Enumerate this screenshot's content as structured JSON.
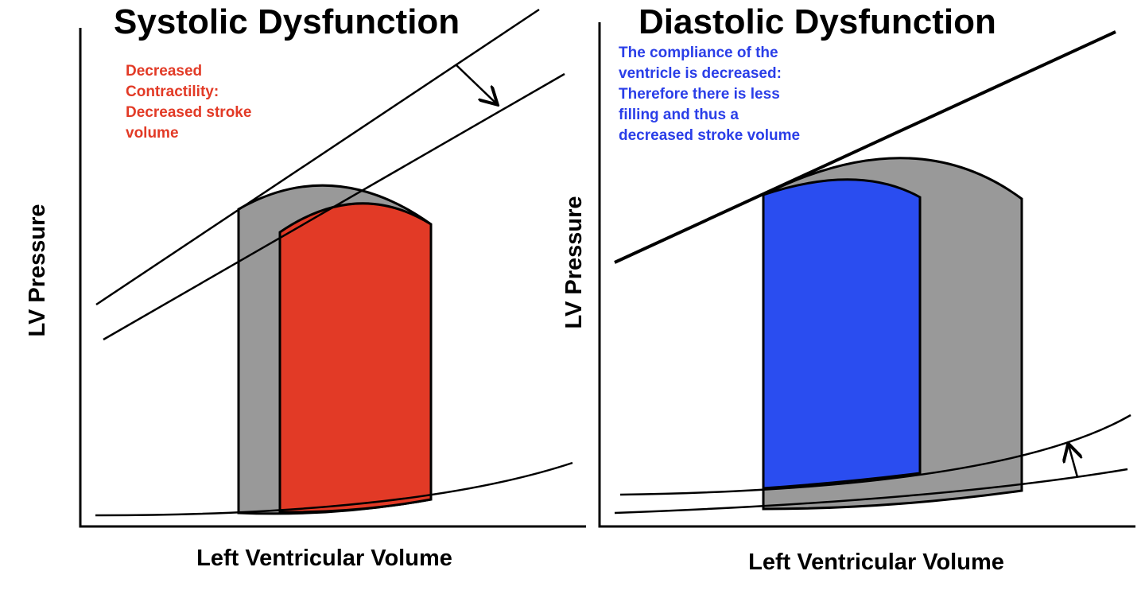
{
  "colors": {
    "systolic_loop": "#e23a26",
    "diastolic_loop": "#2a4df0",
    "original_loop": "#999999",
    "systolic_note": "#e23a26",
    "diastolic_note": "#2a3ee8",
    "lines": "#000000"
  },
  "panels": {
    "systolic": {
      "title": "Systolic Dysfunction",
      "note_lines": [
        "Decreased",
        "Contractility:",
        "Decreased stroke",
        "volume"
      ],
      "y_label": "LV Pressure",
      "x_label": "Left Ventricular Volume",
      "shift_arrow_icon": "arrow-down-right-icon"
    },
    "diastolic": {
      "title": "Diastolic Dysfunction",
      "note_lines": [
        "The compliance of the",
        "ventricle is decreased:",
        "Therefore there is less",
        "filling and thus a",
        "decreased stroke volume"
      ],
      "y_label": "LV Pressure",
      "x_label": "Left Ventricular Volume",
      "shift_arrow_icon": "arrow-up-icon"
    }
  }
}
